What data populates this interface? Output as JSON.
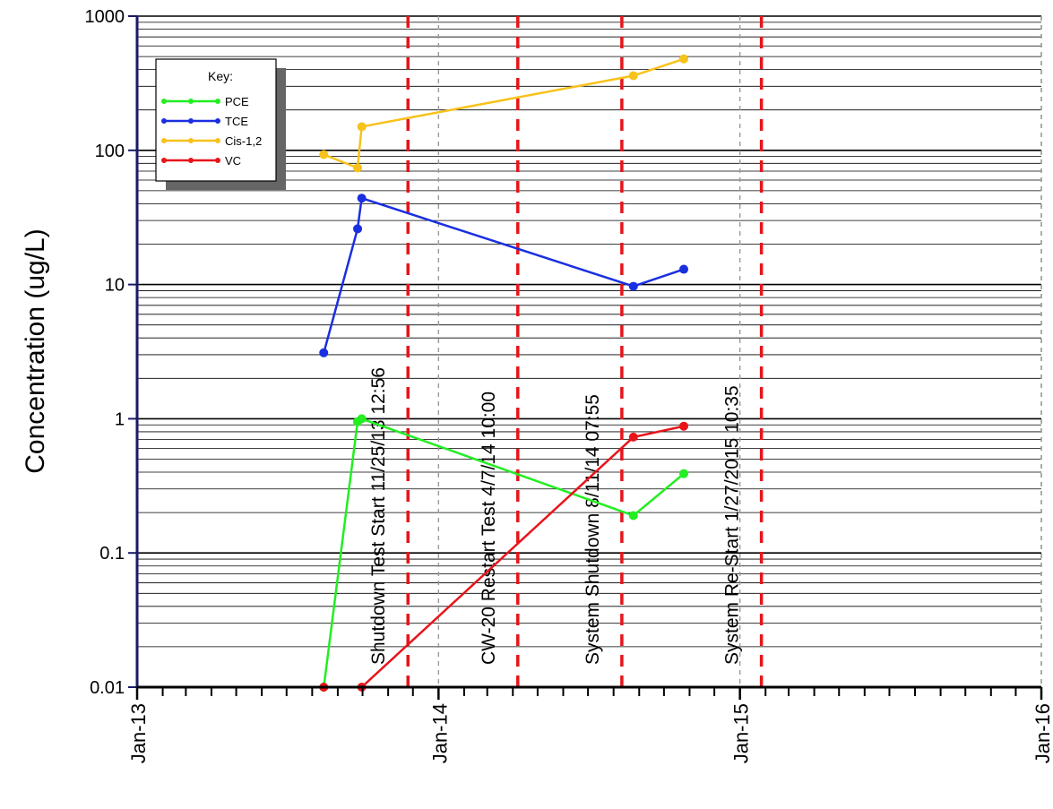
{
  "chart_data": {
    "type": "line",
    "ylabel": "Concentration (ug/L)",
    "y_scale": "log",
    "ylim": [
      0.01,
      1000
    ],
    "y_ticks": [
      {
        "value": 0.01,
        "label": "0.01"
      },
      {
        "value": 0.1,
        "label": "0.1"
      },
      {
        "value": 1,
        "label": "1"
      },
      {
        "value": 10,
        "label": "10"
      },
      {
        "value": 100,
        "label": "100"
      },
      {
        "value": 1000,
        "label": "1000"
      }
    ],
    "xlim": [
      "2013-01-01",
      "2016-01-01"
    ],
    "x_ticks": [
      {
        "date": "2013-01-01",
        "label": "Jan-13"
      },
      {
        "date": "2014-01-01",
        "label": "Jan-14"
      },
      {
        "date": "2015-01-01",
        "label": "Jan-15"
      },
      {
        "date": "2016-01-01",
        "label": "Jan-16"
      }
    ],
    "grid": "horizontal log gridlines; dashed vertical gridlines at year boundaries",
    "legend": {
      "title": "Key:",
      "position": "top-left"
    },
    "series": [
      {
        "name": "PCE",
        "color": "#22ee22",
        "points": [
          {
            "date": "2013-08-15",
            "value": 0.01
          },
          {
            "date": "2013-09-25",
            "value": 0.95
          },
          {
            "date": "2013-09-30",
            "value": 1.0
          },
          {
            "date": "2014-08-25",
            "value": 0.19
          },
          {
            "date": "2014-10-25",
            "value": 0.39
          }
        ]
      },
      {
        "name": "TCE",
        "color": "#1a2fe0",
        "points": [
          {
            "date": "2013-08-15",
            "value": 3.1
          },
          {
            "date": "2013-09-25",
            "value": 26
          },
          {
            "date": "2013-09-30",
            "value": 44
          },
          {
            "date": "2014-08-25",
            "value": 9.7
          },
          {
            "date": "2014-10-25",
            "value": 13
          }
        ]
      },
      {
        "name": "Cis-1,2",
        "color": "#f7c21b",
        "points": [
          {
            "date": "2013-08-15",
            "value": 93
          },
          {
            "date": "2013-09-25",
            "value": 74
          },
          {
            "date": "2013-09-30",
            "value": 150
          },
          {
            "date": "2014-08-25",
            "value": 360
          },
          {
            "date": "2014-10-25",
            "value": 480
          }
        ]
      },
      {
        "name": "VC",
        "color": "#e8141a",
        "points": [
          {
            "date": "2013-08-15",
            "value": 0.01
          },
          {
            "date": "2013-09-30",
            "value": 0.01
          },
          {
            "date": "2014-08-25",
            "value": 0.73
          },
          {
            "date": "2014-10-25",
            "value": 0.88
          }
        ]
      }
    ],
    "event_lines": [
      {
        "date": "2013-11-25",
        "label": "Shutdown Test Start 11/25/13 12:56"
      },
      {
        "date": "2014-04-07",
        "label": "CW-20 Restart Test 4/7/14 10:00"
      },
      {
        "date": "2014-08-11",
        "label": "System Shutdown 8/11/14 07:55"
      },
      {
        "date": "2015-01-27",
        "label": "System Re-Start 1/27/2015 10:35"
      }
    ],
    "colors": {
      "axis": "#1a1a66",
      "event_line": "#e8141a",
      "grid": "#000000",
      "year_grid": "#999999"
    }
  }
}
